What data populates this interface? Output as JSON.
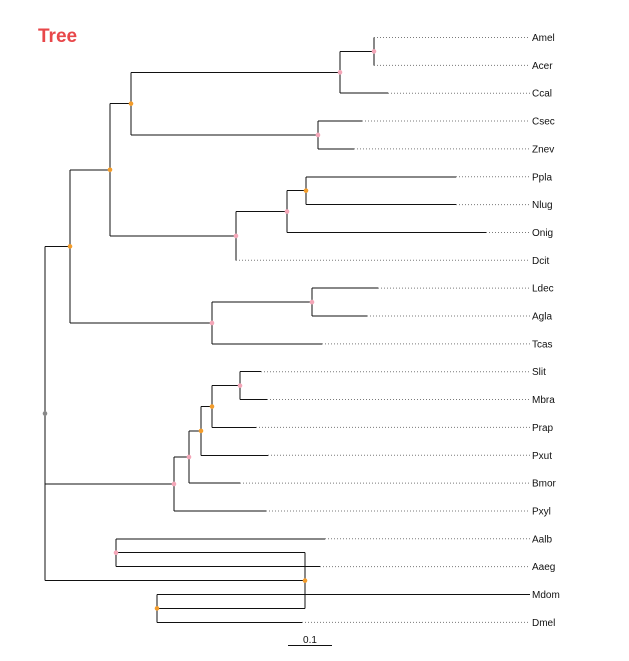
{
  "title": "Tree",
  "scale_bar": {
    "label": "0.1"
  },
  "colors": {
    "title": "#e8474a",
    "support_high": "#f39c2a",
    "support_mid": "#f4a6b8",
    "support_low": "#888888",
    "branch": "#111111",
    "guide": "#7a7a7a"
  },
  "tree": {
    "support": "low",
    "children": [
      {
        "support": "high",
        "children": [
          {
            "support": "high",
            "children": [
              {
                "support": "high",
                "children": [
                  {
                    "support": "mid",
                    "children": [
                      {
                        "support": "mid",
                        "children": [
                          {
                            "name": "Amel"
                          },
                          {
                            "name": "Acer"
                          }
                        ]
                      },
                      {
                        "name": "Ccal"
                      }
                    ]
                  },
                  {
                    "support": "mid",
                    "children": [
                      {
                        "name": "Csec"
                      },
                      {
                        "name": "Znev"
                      }
                    ]
                  }
                ]
              },
              {
                "support": "mid",
                "children": [
                  {
                    "support": "mid",
                    "children": [
                      {
                        "support": "high",
                        "children": [
                          {
                            "name": "Ppla"
                          },
                          {
                            "name": "Nlug"
                          }
                        ]
                      },
                      {
                        "name": "Onig"
                      }
                    ]
                  },
                  {
                    "name": "Dcit"
                  }
                ]
              }
            ]
          },
          {
            "support": "mid",
            "children": [
              {
                "support": "mid",
                "children": [
                  {
                    "name": "Ldec"
                  },
                  {
                    "name": "Agla"
                  }
                ]
              },
              {
                "name": "Tcas"
              }
            ]
          }
        ]
      },
      {
        "support": "mid",
        "children": [
          {
            "support": "mid",
            "children": [
              {
                "support": "high",
                "children": [
                  {
                    "support": "high",
                    "children": [
                      {
                        "support": "mid",
                        "children": [
                          {
                            "name": "Slit"
                          },
                          {
                            "name": "Mbra"
                          }
                        ]
                      },
                      {
                        "name": "Prap"
                      }
                    ]
                  },
                  {
                    "name": "Pxut"
                  }
                ]
              },
              {
                "name": "Bmor"
              }
            ]
          },
          {
            "name": "Pxyl"
          }
        ]
      },
      {
        "support": "high",
        "children": [
          {
            "support": "mid",
            "children": [
              {
                "name": "Aalb"
              },
              {
                "name": "Aaeg"
              }
            ]
          },
          {
            "support": "high",
            "children": [
              {
                "name": "Mdom"
              },
              {
                "name": "Dmel"
              }
            ]
          }
        ]
      }
    ]
  }
}
